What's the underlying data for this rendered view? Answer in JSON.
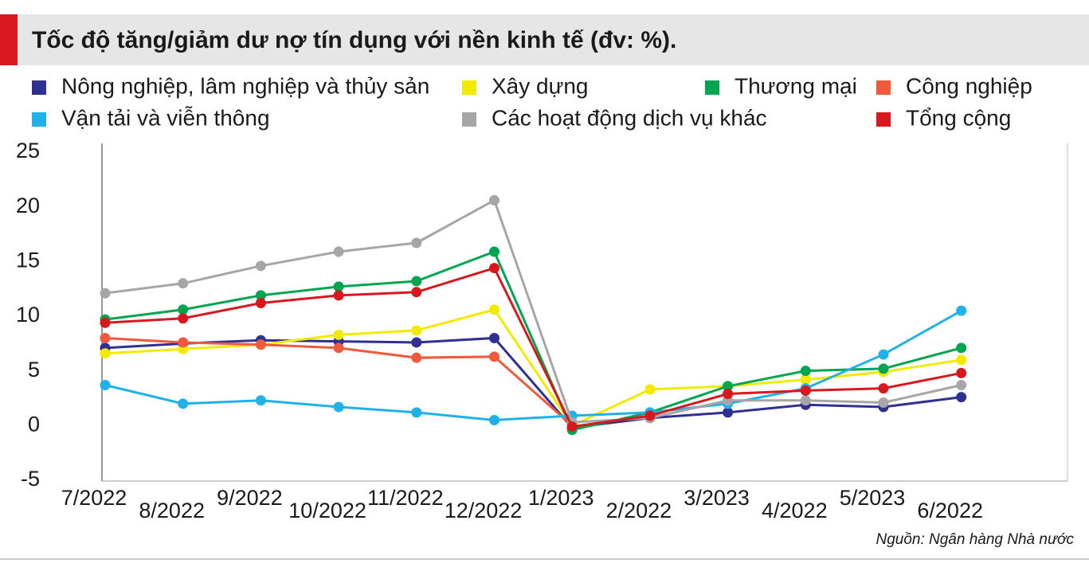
{
  "chart_data": {
    "type": "line",
    "title": "Tốc độ tăng/giảm dư nợ tín dụng với nền kinh tế (đv: %).",
    "source": "Nguồn: Ngân hàng Nhà nước",
    "categories": [
      "7/2022",
      "8/2022",
      "9/2022",
      "10/2022",
      "11/2022",
      "12/2022",
      "1/2023",
      "2/2022",
      "3/2023",
      "4/2022",
      "5/2023",
      "6/2022"
    ],
    "ylim": [
      -5,
      25
    ],
    "yticks": [
      -5,
      0,
      5,
      10,
      15,
      20,
      25
    ],
    "series": [
      {
        "name": "Nông nghiệp, lâm nghiệp và thủy sản",
        "color": "#2e3192",
        "values": [
          7.1,
          7.5,
          7.8,
          7.7,
          7.6,
          8.0,
          -0.2,
          0.7,
          1.2,
          1.9,
          1.7,
          2.6
        ]
      },
      {
        "name": "Xây dựng",
        "color": "#f2ea00",
        "values": [
          6.6,
          7.0,
          7.4,
          8.3,
          8.7,
          10.6,
          0,
          3.3,
          3.6,
          4.2,
          4.9,
          6.0
        ]
      },
      {
        "name": "Thương mại",
        "color": "#00a54f",
        "values": [
          9.7,
          10.6,
          11.9,
          12.7,
          13.2,
          15.9,
          -0.4,
          1.2,
          3.6,
          5.0,
          5.2,
          7.1
        ]
      },
      {
        "name": "Công nghiệp",
        "color": "#ef5a3c",
        "values": [
          8.0,
          7.6,
          7.4,
          7.1,
          6.2,
          6.3,
          0,
          null,
          null,
          null,
          null,
          null
        ]
      },
      {
        "name": "Vận tải và viễn thông",
        "color": "#1fb1e8",
        "values": [
          3.7,
          2.0,
          2.3,
          1.7,
          1.2,
          0.5,
          0.9,
          1.2,
          2.0,
          3.4,
          6.5,
          10.5
        ]
      },
      {
        "name": "Các hoạt động dịch vụ khác",
        "color": "#a6a6a8",
        "values": [
          12.1,
          13.0,
          14.6,
          15.9,
          16.7,
          20.6,
          0.3,
          0.7,
          2.3,
          2.3,
          2.1,
          3.7
        ]
      },
      {
        "name": "Tổng cộng",
        "color": "#d7191f",
        "values": [
          9.4,
          9.8,
          11.2,
          11.9,
          12.2,
          14.4,
          -0.1,
          0.9,
          2.9,
          3.2,
          3.4,
          4.8
        ]
      }
    ]
  }
}
